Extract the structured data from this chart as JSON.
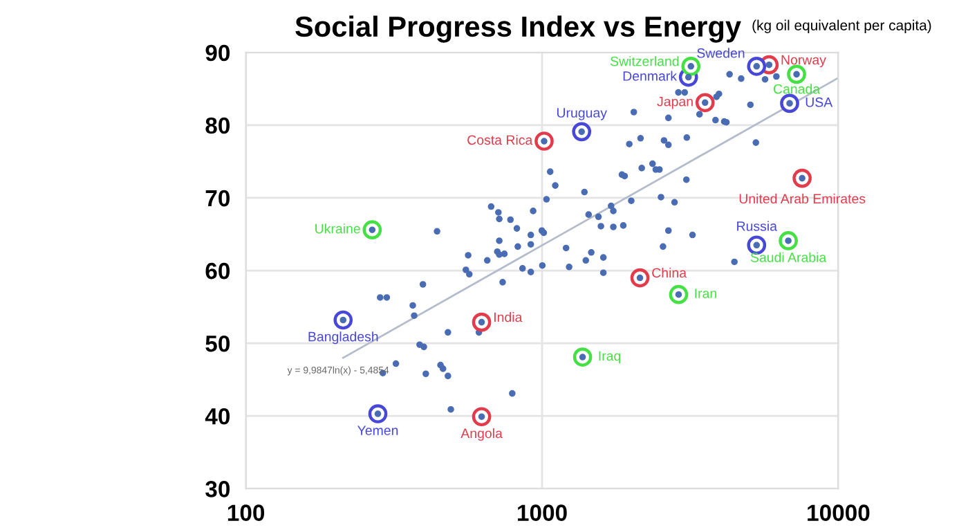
{
  "chart_data": {
    "type": "scatter",
    "title": "Social Progress Index vs Energy",
    "subtitle": "(kg oil equivalent per capita)",
    "log": "x",
    "xlim": [
      100,
      10000
    ],
    "xticks": [
      100,
      1000,
      10000
    ],
    "ylim": [
      30,
      90
    ],
    "yticks": [
      30,
      40,
      50,
      60,
      70,
      80,
      90
    ],
    "grid": true,
    "annotations": [
      "y = 9,9847ln(x) - 5,4854"
    ],
    "series": [
      {
        "marker": "circle",
        "color": "#4a6cb3",
        "x": [
          442,
          563,
          553,
          673,
          712,
          717,
          782,
          822,
          933,
          1065,
          1108,
          1035,
          1390,
          1436,
          717,
          916,
          998,
          1013,
          828,
          916,
          706,
          717,
          746,
          653,
          1205,
          1466,
          1405,
          1234,
          4295,
          4700,
          5660,
          6180,
          2885,
          3030,
          3880,
          3955,
          5050,
          2040,
          2670,
          3400,
          3850,
          4120,
          4190,
          5270,
          1970,
          2150,
          2580,
          2670,
          3080,
          1860,
          1900,
          2170,
          2360,
          2420,
          2490,
          3070,
          2000,
          2520,
          2800,
          1710,
          1740,
          1550,
          1580,
          1740,
          1880,
          2670,
          3220,
          2560,
          1610,
          1610,
          4460,
          284,
          299,
          396,
          366,
          370,
          568,
          736,
          859,
          916,
          1002,
          481,
          612,
          386,
          399,
          321,
          290,
          405,
          454,
          463,
          481,
          492,
          793
        ],
        "values": [
          65.4,
          62.1,
          60.1,
          68.8,
          68.0,
          67.1,
          67.0,
          65.8,
          68.2,
          73.6,
          71.7,
          69.8,
          70.8,
          67.7,
          64.1,
          64.9,
          65.5,
          65.2,
          63.3,
          63.6,
          62.6,
          62.2,
          62.3,
          61.4,
          63.1,
          62.5,
          61.4,
          60.5,
          87.0,
          86.4,
          86.3,
          86.7,
          84.5,
          84.5,
          83.9,
          84.3,
          82.8,
          81.8,
          81.0,
          81.5,
          80.7,
          80.5,
          80.4,
          77.6,
          77.4,
          78.2,
          77.9,
          77.3,
          78.3,
          73.2,
          73.0,
          74.1,
          74.7,
          73.9,
          73.9,
          72.5,
          69.6,
          70.1,
          69.4,
          68.9,
          68.2,
          67.4,
          66.1,
          66.0,
          66.2,
          65.5,
          64.9,
          63.3,
          61.8,
          59.7,
          61.2,
          56.3,
          56.3,
          58.1,
          55.2,
          53.8,
          59.5,
          58.4,
          60.3,
          59.8,
          60.7,
          51.5,
          51.5,
          49.8,
          49.5,
          47.2,
          45.9,
          45.8,
          47.0,
          46.5,
          45.5,
          40.9,
          43.1
        ]
      },
      {
        "marker": "circle",
        "color": "#e23c4c",
        "x": [
          1016,
          5840,
          3550,
          7550,
          2140,
          625,
          625
        ],
        "values": [
          77.8,
          88.3,
          83.1,
          72.7,
          59.0,
          52.9,
          39.9
        ],
        "value_labels": [
          "Costa Rica",
          "Norway",
          "Japan",
          "United Arab Emirates",
          "China",
          "India",
          "Angola"
        ]
      },
      {
        "marker": "circle",
        "color": "#4848d8",
        "x": [
          1360,
          3120,
          5300,
          6850,
          5300,
          213,
          279
        ],
        "values": [
          79.1,
          86.6,
          88.1,
          83.0,
          63.5,
          53.2,
          40.3
        ],
        "value_labels": [
          "Uruguay",
          "Denmark",
          "Sweden",
          "USA",
          "Russia",
          "Bangladesh",
          "Yemen"
        ]
      },
      {
        "marker": "circle",
        "color": "#44e044",
        "x": [
          267,
          3180,
          7230,
          6780,
          2890,
          1370
        ],
        "values": [
          65.6,
          88.1,
          87.0,
          64.1,
          56.7,
          48.1
        ],
        "value_labels": [
          "Ukraine",
          "Switzerland",
          "Canada",
          "Saudi Arabia",
          "Iran",
          "Iraq"
        ]
      },
      {
        "type": "line",
        "color": "#b4bccb",
        "x": [
          213,
          10000
        ],
        "values": [
          48.0,
          86.5
        ]
      }
    ]
  }
}
